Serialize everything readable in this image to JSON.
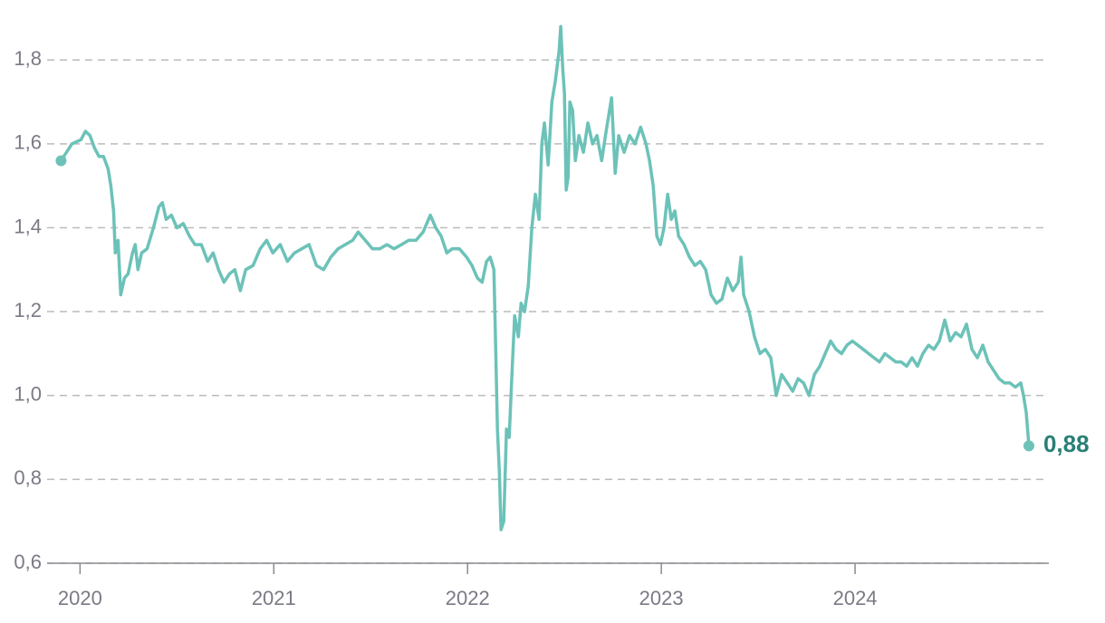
{
  "chart_data": {
    "type": "line",
    "series": [
      {
        "color": "#6cc2b8",
        "x": [
          2019.902,
          2019.958,
          2020.005,
          2020.028,
          2020.051,
          2020.075,
          2020.098,
          2020.121,
          2020.145,
          2020.159,
          2020.173,
          2020.182,
          2020.196,
          2020.21,
          2020.229,
          2020.248,
          2020.271,
          2020.285,
          2020.299,
          2020.318,
          2020.346,
          2020.379,
          2020.407,
          2020.425,
          2020.444,
          2020.472,
          2020.5,
          2020.533,
          2020.565,
          2020.593,
          2020.626,
          2020.659,
          2020.687,
          2020.715,
          2020.743,
          2020.771,
          2020.799,
          2020.827,
          2020.855,
          2020.893,
          2020.93,
          2020.963,
          2020.995,
          2021.033,
          2021.07,
          2021.107,
          2021.145,
          2021.182,
          2021.22,
          2021.257,
          2021.294,
          2021.332,
          2021.369,
          2021.407,
          2021.435,
          2021.472,
          2021.509,
          2021.547,
          2021.584,
          2021.621,
          2021.659,
          2021.696,
          2021.734,
          2021.771,
          2021.808,
          2021.836,
          2021.864,
          2021.893,
          2021.921,
          2021.958,
          2021.995,
          2022.023,
          2022.051,
          2022.075,
          2022.098,
          2022.117,
          2022.136,
          2022.145,
          2022.154,
          2022.164,
          2022.173,
          2022.187,
          2022.201,
          2022.215,
          2022.229,
          2022.243,
          2022.262,
          2022.276,
          2022.294,
          2022.313,
          2022.332,
          2022.35,
          2022.369,
          2022.383,
          2022.397,
          2022.416,
          2022.435,
          2022.453,
          2022.472,
          2022.481,
          2022.491,
          2022.5,
          2022.509,
          2022.519,
          2022.528,
          2022.542,
          2022.556,
          2022.575,
          2022.598,
          2022.621,
          2022.645,
          2022.668,
          2022.692,
          2022.715,
          2022.743,
          2022.762,
          2022.78,
          2022.808,
          2022.836,
          2022.864,
          2022.893,
          2022.921,
          2022.939,
          2022.958,
          2022.977,
          2022.995,
          2023.014,
          2023.033,
          2023.051,
          2023.07,
          2023.089,
          2023.117,
          2023.145,
          2023.173,
          2023.201,
          2023.229,
          2023.257,
          2023.285,
          2023.313,
          2023.341,
          2023.369,
          2023.397,
          2023.411,
          2023.425,
          2023.453,
          2023.481,
          2023.509,
          2023.537,
          2023.565,
          2023.593,
          2023.621,
          2023.65,
          2023.678,
          2023.706,
          2023.734,
          2023.762,
          2023.79,
          2023.818,
          2023.846,
          2023.874,
          2023.902,
          2023.93,
          2023.958,
          2023.986,
          2024.014,
          2024.042,
          2024.07,
          2024.098,
          2024.126,
          2024.154,
          2024.182,
          2024.21,
          2024.238,
          2024.266,
          2024.294,
          2024.322,
          2024.35,
          2024.379,
          2024.407,
          2024.435,
          2024.463,
          2024.491,
          2024.519,
          2024.547,
          2024.575,
          2024.603,
          2024.631,
          2024.659,
          2024.687,
          2024.715,
          2024.743,
          2024.771,
          2024.799,
          2024.827,
          2024.855,
          2024.869,
          2024.883,
          2024.897
        ],
        "values": [
          1.56,
          1.6,
          1.61,
          1.63,
          1.62,
          1.59,
          1.57,
          1.57,
          1.54,
          1.5,
          1.44,
          1.34,
          1.37,
          1.24,
          1.28,
          1.29,
          1.34,
          1.36,
          1.3,
          1.34,
          1.35,
          1.4,
          1.45,
          1.46,
          1.42,
          1.43,
          1.4,
          1.41,
          1.38,
          1.36,
          1.36,
          1.32,
          1.34,
          1.3,
          1.27,
          1.29,
          1.3,
          1.25,
          1.3,
          1.31,
          1.35,
          1.37,
          1.34,
          1.36,
          1.32,
          1.34,
          1.35,
          1.36,
          1.31,
          1.3,
          1.33,
          1.35,
          1.36,
          1.37,
          1.39,
          1.37,
          1.35,
          1.35,
          1.36,
          1.35,
          1.36,
          1.37,
          1.37,
          1.39,
          1.43,
          1.4,
          1.38,
          1.34,
          1.35,
          1.35,
          1.33,
          1.31,
          1.28,
          1.27,
          1.32,
          1.33,
          1.3,
          1.12,
          0.92,
          0.82,
          0.68,
          0.7,
          0.92,
          0.9,
          1.05,
          1.19,
          1.14,
          1.22,
          1.2,
          1.26,
          1.4,
          1.48,
          1.42,
          1.6,
          1.65,
          1.55,
          1.7,
          1.75,
          1.82,
          1.88,
          1.78,
          1.72,
          1.49,
          1.52,
          1.7,
          1.68,
          1.56,
          1.62,
          1.58,
          1.65,
          1.6,
          1.62,
          1.56,
          1.63,
          1.71,
          1.53,
          1.62,
          1.58,
          1.62,
          1.6,
          1.64,
          1.6,
          1.56,
          1.5,
          1.38,
          1.36,
          1.4,
          1.48,
          1.42,
          1.44,
          1.38,
          1.36,
          1.33,
          1.31,
          1.32,
          1.3,
          1.24,
          1.22,
          1.23,
          1.28,
          1.25,
          1.27,
          1.33,
          1.24,
          1.2,
          1.14,
          1.1,
          1.11,
          1.09,
          1.0,
          1.05,
          1.03,
          1.01,
          1.04,
          1.03,
          1.0,
          1.05,
          1.07,
          1.1,
          1.13,
          1.11,
          1.1,
          1.12,
          1.13,
          1.12,
          1.11,
          1.1,
          1.09,
          1.08,
          1.1,
          1.09,
          1.08,
          1.08,
          1.07,
          1.09,
          1.07,
          1.1,
          1.12,
          1.11,
          1.13,
          1.18,
          1.13,
          1.15,
          1.14,
          1.17,
          1.11,
          1.09,
          1.12,
          1.08,
          1.06,
          1.04,
          1.03,
          1.03,
          1.02,
          1.03,
          1.0,
          0.96,
          0.88
        ]
      }
    ],
    "annotations": [
      {
        "value": 0.88,
        "label": "0,88",
        "color": "#2a7f76"
      }
    ],
    "xlim": [
      2019.83,
      2025.0
    ],
    "xticks": [
      2020,
      2021,
      2022,
      2023,
      2024
    ],
    "ylim": [
      0.6,
      1.9
    ],
    "yticks": [
      {
        "value": 0.6,
        "label": "0,6"
      },
      {
        "value": 0.8,
        "label": "0,8"
      },
      {
        "value": 1.0,
        "label": "1,0"
      },
      {
        "value": 1.2,
        "label": "1,2"
      },
      {
        "value": 1.4,
        "label": "1,4"
      },
      {
        "value": 1.6,
        "label": "1,6"
      },
      {
        "value": 1.8,
        "label": "1,8"
      }
    ],
    "grid": true
  }
}
